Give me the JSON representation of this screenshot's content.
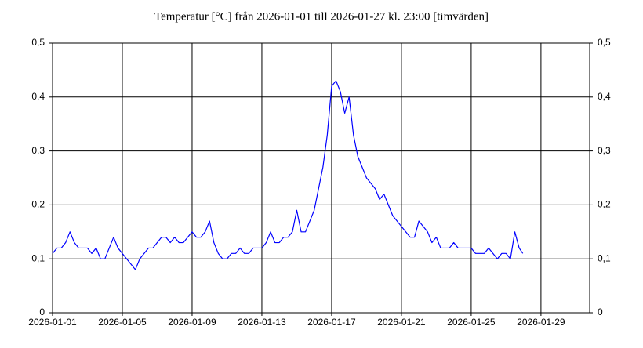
{
  "chart_data": {
    "type": "line",
    "title": "Temperatur [°C] från 2026-01-01 till 2026-01-27 kl. 23:00 [timvärden]",
    "x": [
      "2026-01-01 00:00",
      "2026-01-01 06:00",
      "2026-01-01 12:00",
      "2026-01-01 18:00",
      "2026-01-02 00:00",
      "2026-01-02 06:00",
      "2026-01-02 12:00",
      "2026-01-02 18:00",
      "2026-01-03 00:00",
      "2026-01-03 06:00",
      "2026-01-03 12:00",
      "2026-01-03 18:00",
      "2026-01-04 00:00",
      "2026-01-04 06:00",
      "2026-01-04 12:00",
      "2026-01-04 18:00",
      "2026-01-05 00:00",
      "2026-01-05 06:00",
      "2026-01-05 12:00",
      "2026-01-05 18:00",
      "2026-01-06 00:00",
      "2026-01-06 06:00",
      "2026-01-06 12:00",
      "2026-01-06 18:00",
      "2026-01-07 00:00",
      "2026-01-07 06:00",
      "2026-01-07 12:00",
      "2026-01-07 18:00",
      "2026-01-08 00:00",
      "2026-01-08 06:00",
      "2026-01-08 12:00",
      "2026-01-08 18:00",
      "2026-01-09 00:00",
      "2026-01-09 06:00",
      "2026-01-09 12:00",
      "2026-01-09 18:00",
      "2026-01-10 00:00",
      "2026-01-10 06:00",
      "2026-01-10 12:00",
      "2026-01-10 18:00",
      "2026-01-11 00:00",
      "2026-01-11 06:00",
      "2026-01-11 12:00",
      "2026-01-11 18:00",
      "2026-01-12 00:00",
      "2026-01-12 06:00",
      "2026-01-12 12:00",
      "2026-01-12 18:00",
      "2026-01-13 00:00",
      "2026-01-13 06:00",
      "2026-01-13 12:00",
      "2026-01-13 18:00",
      "2026-01-14 00:00",
      "2026-01-14 06:00",
      "2026-01-14 12:00",
      "2026-01-14 18:00",
      "2026-01-15 00:00",
      "2026-01-15 06:00",
      "2026-01-15 12:00",
      "2026-01-15 18:00",
      "2026-01-16 00:00",
      "2026-01-16 06:00",
      "2026-01-16 12:00",
      "2026-01-16 18:00",
      "2026-01-17 00:00",
      "2026-01-17 06:00",
      "2026-01-17 12:00",
      "2026-01-17 18:00",
      "2026-01-18 00:00",
      "2026-01-18 06:00",
      "2026-01-18 12:00",
      "2026-01-18 18:00",
      "2026-01-19 00:00",
      "2026-01-19 06:00",
      "2026-01-19 12:00",
      "2026-01-19 18:00",
      "2026-01-20 00:00",
      "2026-01-20 06:00",
      "2026-01-20 12:00",
      "2026-01-20 18:00",
      "2026-01-21 00:00",
      "2026-01-21 06:00",
      "2026-01-21 12:00",
      "2026-01-21 18:00",
      "2026-01-22 00:00",
      "2026-01-22 06:00",
      "2026-01-22 12:00",
      "2026-01-22 18:00",
      "2026-01-23 00:00",
      "2026-01-23 06:00",
      "2026-01-23 12:00",
      "2026-01-23 18:00",
      "2026-01-24 00:00",
      "2026-01-24 06:00",
      "2026-01-24 12:00",
      "2026-01-24 18:00",
      "2026-01-25 00:00",
      "2026-01-25 06:00",
      "2026-01-25 12:00",
      "2026-01-25 18:00",
      "2026-01-26 00:00",
      "2026-01-26 06:00",
      "2026-01-26 12:00",
      "2026-01-26 18:00",
      "2026-01-27 00:00",
      "2026-01-27 06:00",
      "2026-01-27 12:00",
      "2026-01-27 18:00",
      "2026-01-27 23:00"
    ],
    "series": [
      {
        "name": "Temperatur",
        "color": "#0000ff",
        "values": [
          0.11,
          0.12,
          0.12,
          0.13,
          0.15,
          0.13,
          0.12,
          0.12,
          0.12,
          0.11,
          0.12,
          0.1,
          0.1,
          0.12,
          0.14,
          0.12,
          0.11,
          0.1,
          0.09,
          0.08,
          0.1,
          0.11,
          0.12,
          0.12,
          0.13,
          0.14,
          0.14,
          0.13,
          0.14,
          0.13,
          0.13,
          0.14,
          0.15,
          0.14,
          0.14,
          0.15,
          0.17,
          0.13,
          0.11,
          0.1,
          0.1,
          0.11,
          0.11,
          0.12,
          0.11,
          0.11,
          0.12,
          0.12,
          0.12,
          0.13,
          0.15,
          0.13,
          0.13,
          0.14,
          0.14,
          0.15,
          0.19,
          0.15,
          0.15,
          0.17,
          0.19,
          0.23,
          0.27,
          0.33,
          0.42,
          0.43,
          0.41,
          0.37,
          0.4,
          0.33,
          0.29,
          0.27,
          0.25,
          0.24,
          0.23,
          0.21,
          0.22,
          0.2,
          0.18,
          0.17,
          0.16,
          0.15,
          0.14,
          0.14,
          0.17,
          0.16,
          0.15,
          0.13,
          0.14,
          0.12,
          0.12,
          0.12,
          0.13,
          0.12,
          0.12,
          0.12,
          0.12,
          0.11,
          0.11,
          0.11,
          0.12,
          0.11,
          0.1,
          0.11,
          0.11,
          0.1,
          0.15,
          0.12,
          0.11
        ]
      }
    ],
    "xlim": [
      "2026-01-01 00:00",
      "2026-01-31 19:00"
    ],
    "xticks": [
      "2026-01-01",
      "2026-01-05",
      "2026-01-09",
      "2026-01-13",
      "2026-01-17",
      "2026-01-21",
      "2026-01-25",
      "2026-01-29"
    ],
    "ylim": [
      0,
      0.5
    ],
    "yticks": [
      0,
      {
        "value": 0.1,
        "label": "0,1"
      },
      {
        "value": 0.2,
        "label": "0,2"
      },
      {
        "value": 0.3,
        "label": "0,3"
      },
      {
        "value": 0.4,
        "label": "0,4"
      },
      {
        "value": 0.5,
        "label": "0,5"
      }
    ],
    "grid": true
  }
}
